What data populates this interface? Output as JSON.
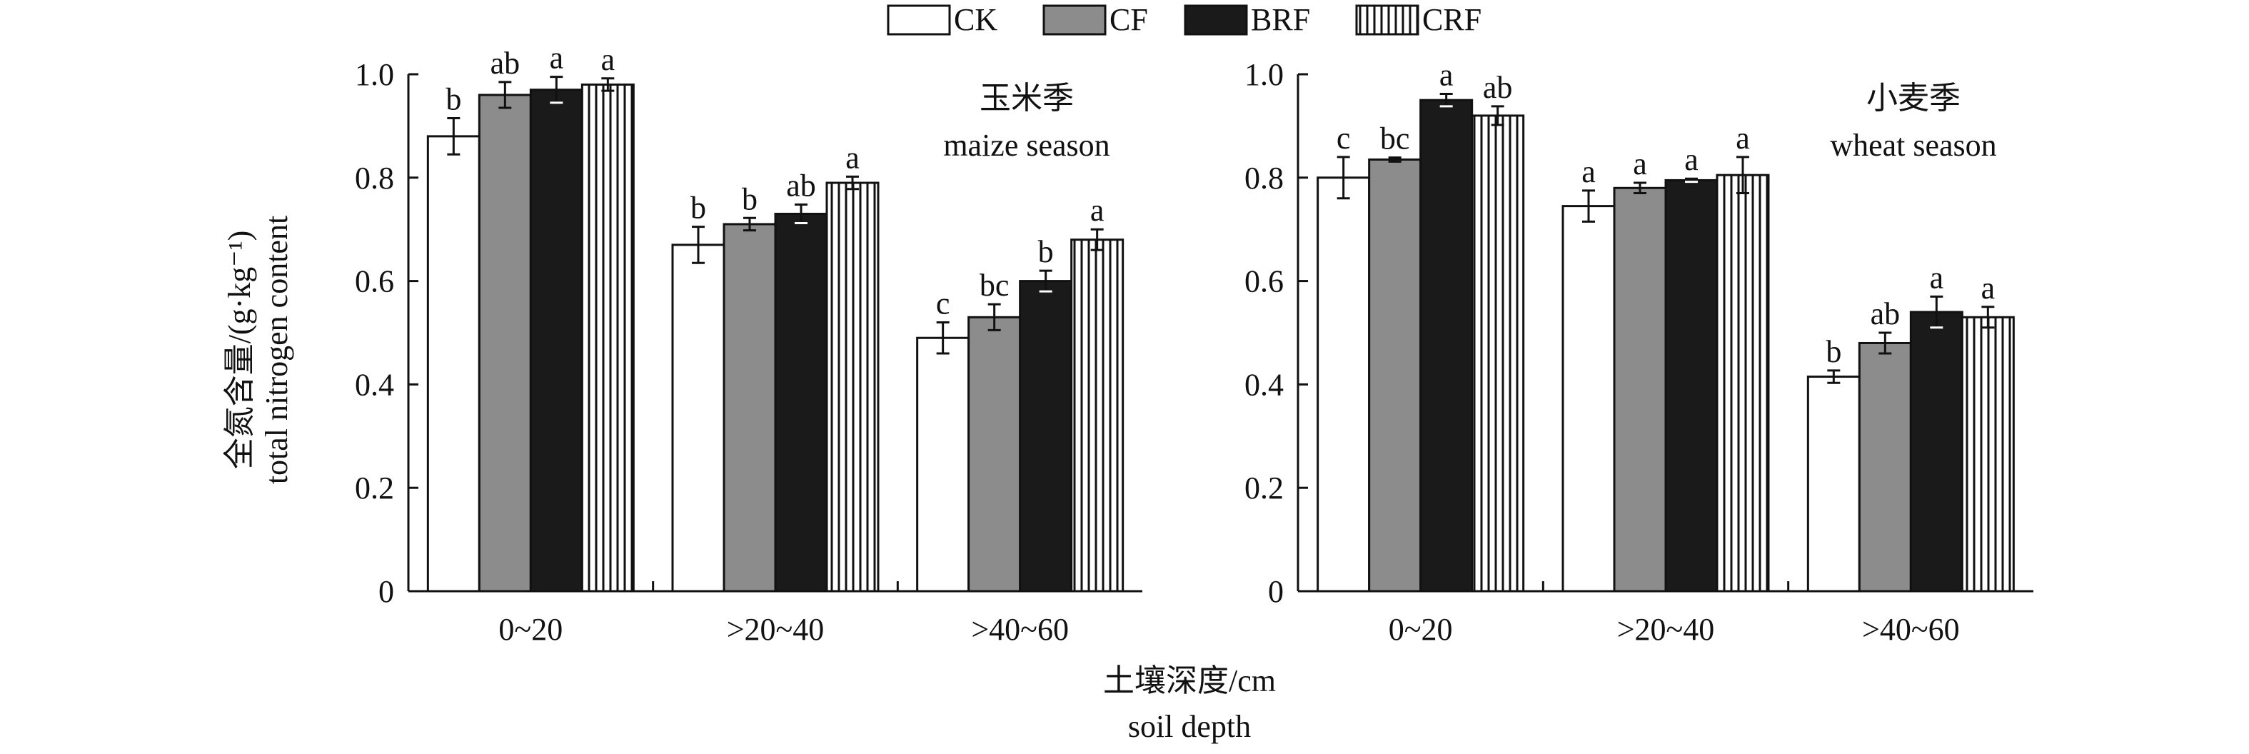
{
  "legend": {
    "items": [
      {
        "name": "CK",
        "pattern": "white"
      },
      {
        "name": "CF",
        "pattern": "gray"
      },
      {
        "name": "BRF",
        "pattern": "black"
      },
      {
        "name": "CRF",
        "pattern": "stripes"
      }
    ]
  },
  "y_axis": {
    "label_cn": "全氮含量/(g·kg⁻¹)",
    "label_en": "total nitrogen content"
  },
  "x_axis": {
    "label_cn": "土壤深度/cm",
    "label_en": "soil depth"
  },
  "colors": {
    "CK": "#ffffff",
    "CF": "#8c8c8c",
    "BRF": "#1a1a1a",
    "CRF_stripe": "#111111",
    "axis": "#111111"
  },
  "chart_data": [
    {
      "type": "bar",
      "panel_title_cn": "玉米季",
      "panel_title_en": "maize season",
      "categories": [
        "0~20",
        ">20~40",
        ">40~60"
      ],
      "ylim": [
        0,
        1.0
      ],
      "yticks": [
        "0",
        "0.2",
        "0.4",
        "0.6",
        "0.8",
        "1.0"
      ],
      "series": [
        {
          "name": "CK",
          "values": [
            0.88,
            0.67,
            0.49
          ],
          "errors": [
            0.035,
            0.035,
            0.03
          ],
          "letters": [
            "b",
            "b",
            "c"
          ]
        },
        {
          "name": "CF",
          "values": [
            0.96,
            0.71,
            0.53
          ],
          "errors": [
            0.025,
            0.012,
            0.025
          ],
          "letters": [
            "ab",
            "b",
            "bc"
          ]
        },
        {
          "name": "BRF",
          "values": [
            0.97,
            0.73,
            0.6
          ],
          "errors": [
            0.025,
            0.018,
            0.02
          ],
          "letters": [
            "a",
            "ab",
            "b"
          ]
        },
        {
          "name": "CRF",
          "values": [
            0.98,
            0.79,
            0.68
          ],
          "errors": [
            0.012,
            0.012,
            0.02
          ],
          "letters": [
            "a",
            "a",
            "a"
          ]
        }
      ]
    },
    {
      "type": "bar",
      "panel_title_cn": "小麦季",
      "panel_title_en": "wheat season",
      "categories": [
        "0~20",
        ">20~40",
        ">40~60"
      ],
      "ylim": [
        0,
        1.0
      ],
      "yticks": [
        "0",
        "0.2",
        "0.4",
        "0.6",
        "0.8",
        "1.0"
      ],
      "series": [
        {
          "name": "CK",
          "values": [
            0.8,
            0.745,
            0.415
          ],
          "errors": [
            0.04,
            0.03,
            0.012
          ],
          "letters": [
            "c",
            "a",
            "b"
          ]
        },
        {
          "name": "CF",
          "values": [
            0.835,
            0.78,
            0.48
          ],
          "errors": [
            0.004,
            0.01,
            0.02
          ],
          "letters": [
            "bc",
            "a",
            "ab"
          ]
        },
        {
          "name": "BRF",
          "values": [
            0.95,
            0.795,
            0.54
          ],
          "errors": [
            0.012,
            0.003,
            0.03
          ],
          "letters": [
            "a",
            "a",
            "a"
          ]
        },
        {
          "name": "CRF",
          "values": [
            0.92,
            0.805,
            0.53
          ],
          "errors": [
            0.018,
            0.035,
            0.02
          ],
          "letters": [
            "ab",
            "a",
            "a"
          ]
        }
      ]
    }
  ]
}
